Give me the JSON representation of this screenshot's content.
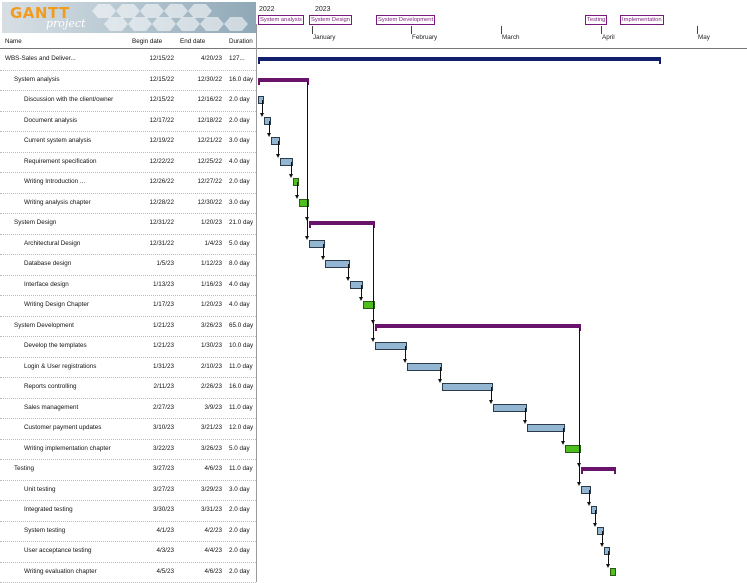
{
  "app": {
    "logo_text": "GANTT",
    "logo_sub": "project"
  },
  "columns": {
    "name": "Name",
    "begin": "Begin date",
    "end": "End date",
    "duration": "Duration"
  },
  "timeline": {
    "years": [
      "2022",
      "2023"
    ],
    "months": [
      "January",
      "February",
      "March",
      "April",
      "May"
    ],
    "milestones": [
      "System analysis",
      "System Design",
      "System Development",
      "Testing",
      "Implementation"
    ]
  },
  "tasks": [
    {
      "name": "WBS-Sales and Deliver...",
      "begin": "12/15/22",
      "end": "4/20/23",
      "duration": "127...",
      "level": 0,
      "kind": "project"
    },
    {
      "name": "System analysis",
      "begin": "12/15/22",
      "end": "12/30/22",
      "duration": "16.0 day",
      "level": 1,
      "kind": "summary"
    },
    {
      "name": "Discussion with the client/owner",
      "begin": "12/15/22",
      "end": "12/16/22",
      "duration": "2.0 day",
      "level": 2,
      "kind": "task"
    },
    {
      "name": "Document analysis",
      "begin": "12/17/22",
      "end": "12/18/22",
      "duration": "2.0 day",
      "level": 2,
      "kind": "task"
    },
    {
      "name": "Current system analysis",
      "begin": "12/19/22",
      "end": "12/21/22",
      "duration": "3.0 day",
      "level": 2,
      "kind": "task"
    },
    {
      "name": "Requirement specification",
      "begin": "12/22/22",
      "end": "12/25/22",
      "duration": "4.0 day",
      "level": 2,
      "kind": "task"
    },
    {
      "name": "Writing Introduction ...",
      "begin": "12/26/22",
      "end": "12/27/22",
      "duration": "2.0 day",
      "level": 2,
      "kind": "done"
    },
    {
      "name": "Writing analysis chapter",
      "begin": "12/28/22",
      "end": "12/30/22",
      "duration": "3.0 day",
      "level": 2,
      "kind": "done"
    },
    {
      "name": "System Design",
      "begin": "12/31/22",
      "end": "1/20/23",
      "duration": "21.0 day",
      "level": 1,
      "kind": "summary"
    },
    {
      "name": "Architectural Design",
      "begin": "12/31/22",
      "end": "1/4/23",
      "duration": "5.0 day",
      "level": 2,
      "kind": "task"
    },
    {
      "name": "Database design",
      "begin": "1/5/23",
      "end": "1/12/23",
      "duration": "8.0 day",
      "level": 2,
      "kind": "task"
    },
    {
      "name": "Interface design",
      "begin": "1/13/23",
      "end": "1/16/23",
      "duration": "4.0 day",
      "level": 2,
      "kind": "task"
    },
    {
      "name": "Writing Design Chapter",
      "begin": "1/17/23",
      "end": "1/20/23",
      "duration": "4.0 day",
      "level": 2,
      "kind": "done"
    },
    {
      "name": "System Development",
      "begin": "1/21/23",
      "end": "3/26/23",
      "duration": "65.0 day",
      "level": 1,
      "kind": "summary"
    },
    {
      "name": "Develop the templates",
      "begin": "1/21/23",
      "end": "1/30/23",
      "duration": "10.0 day",
      "level": 2,
      "kind": "task"
    },
    {
      "name": "Login & User registrations",
      "begin": "1/31/23",
      "end": "2/10/23",
      "duration": "11.0 day",
      "level": 2,
      "kind": "task"
    },
    {
      "name": "Reports controlling",
      "begin": "2/11/23",
      "end": "2/26/23",
      "duration": "16.0 day",
      "level": 2,
      "kind": "task"
    },
    {
      "name": "Sales management",
      "begin": "2/27/23",
      "end": "3/9/23",
      "duration": "11.0 day",
      "level": 2,
      "kind": "task"
    },
    {
      "name": "Customer payment updates",
      "begin": "3/10/23",
      "end": "3/21/23",
      "duration": "12.0 day",
      "level": 2,
      "kind": "task"
    },
    {
      "name": "Writing implementation chapter",
      "begin": "3/22/23",
      "end": "3/26/23",
      "duration": "5.0 day",
      "level": 2,
      "kind": "done"
    },
    {
      "name": "Testing",
      "begin": "3/27/23",
      "end": "4/6/23",
      "duration": "11.0 day",
      "level": 1,
      "kind": "summary"
    },
    {
      "name": "Unit testing",
      "begin": "3/27/23",
      "end": "3/29/23",
      "duration": "3.0 day",
      "level": 2,
      "kind": "task"
    },
    {
      "name": "Integrated testing",
      "begin": "3/30/23",
      "end": "3/31/23",
      "duration": "2.0 day",
      "level": 2,
      "kind": "task"
    },
    {
      "name": "System testing",
      "begin": "4/1/23",
      "end": "4/2/23",
      "duration": "2.0 day",
      "level": 2,
      "kind": "task"
    },
    {
      "name": "User acceptance testing",
      "begin": "4/3/23",
      "end": "4/4/23",
      "duration": "2.0 day",
      "level": 2,
      "kind": "task"
    },
    {
      "name": "Writing evaluation chapter",
      "begin": "4/5/23",
      "end": "4/6/23",
      "duration": "2.0 day",
      "level": 2,
      "kind": "done"
    }
  ]
}
